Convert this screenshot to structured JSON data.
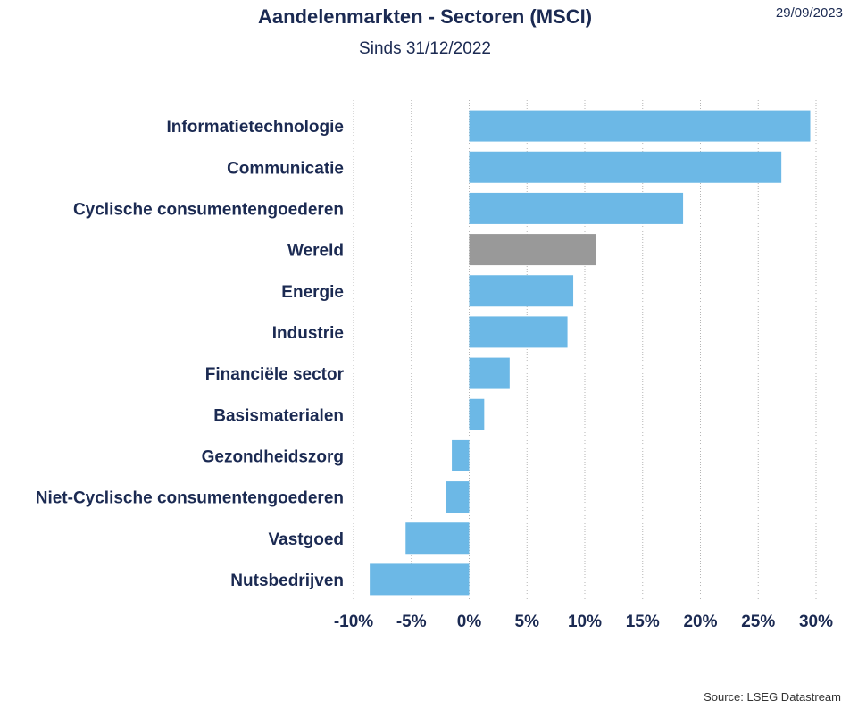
{
  "header": {
    "title": "Aandelenmarkten - Sectoren (MSCI)",
    "subtitle": "Sinds 31/12/2022",
    "date": "29/09/2023"
  },
  "footer": {
    "source": "Source: LSEG Datastream"
  },
  "colors": {
    "bar": "#6cb8e6",
    "highlight_bar": "#999999",
    "text": "#1b2a52"
  },
  "chart_data": {
    "type": "bar",
    "orientation": "horizontal",
    "title": "Aandelenmarkten - Sectoren (MSCI)",
    "subtitle": "Sinds 31/12/2022",
    "categories": [
      "Informatietechnologie",
      "Communicatie",
      "Cyclische consumentengoederen",
      "Wereld",
      "Energie",
      "Industrie",
      "Financiële sector",
      "Basismaterialen",
      "Gezondheidszorg",
      "Niet-Cyclische consumentengoederen",
      "Vastgoed",
      "Nutsbedrijven"
    ],
    "values": [
      29.5,
      27.0,
      18.5,
      11.0,
      9.0,
      8.5,
      3.5,
      1.3,
      -1.5,
      -2.0,
      -5.5,
      -8.6
    ],
    "highlight": "Wereld",
    "xlim": [
      -10,
      30
    ],
    "xticks": [
      -10,
      -5,
      0,
      5,
      10,
      15,
      20,
      25,
      30
    ],
    "xtick_labels": [
      "-10%",
      "-5%",
      "0%",
      "5%",
      "10%",
      "15%",
      "20%",
      "25%",
      "30%"
    ],
    "grid": "vertical dotted",
    "legend": "none"
  }
}
